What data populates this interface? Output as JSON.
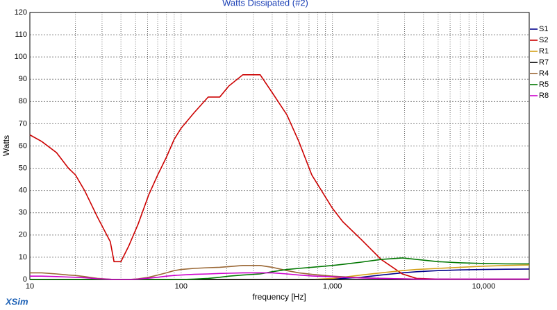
{
  "chart_data": {
    "type": "line",
    "title": "Watts Dissipated (#2)",
    "xlabel": "frequency [Hz]",
    "ylabel": "Watts",
    "watermark": "XSim",
    "xscale": "log",
    "xlim": [
      10,
      20000
    ],
    "ylim": [
      0,
      120
    ],
    "xticks": [
      10,
      100,
      {
        "value": 1000,
        "label": "1,000"
      },
      {
        "value": 10000,
        "label": "10,000"
      }
    ],
    "x_minor_ticks": [
      20,
      30,
      40,
      50,
      60,
      70,
      80,
      90,
      200,
      300,
      400,
      500,
      600,
      700,
      800,
      900,
      2000,
      3000,
      4000,
      5000,
      6000,
      7000,
      8000,
      9000
    ],
    "yticks": [
      0,
      10,
      20,
      30,
      40,
      50,
      60,
      70,
      80,
      90,
      100,
      110,
      120
    ],
    "grid": true,
    "legend": "right",
    "x": [
      10,
      12,
      15,
      18,
      20,
      23,
      28,
      34,
      36,
      40,
      45,
      52,
      61,
      70,
      80,
      90,
      100,
      122,
      151,
      180,
      207,
      256,
      333,
      400,
      500,
      600,
      730,
      1000,
      1170,
      1550,
      2100,
      2900,
      3600,
      5000,
      7000,
      10000,
      14000,
      20000
    ],
    "series": [
      {
        "name": "S1",
        "color": "#00008b",
        "values": [
          0,
          0,
          0,
          0,
          0,
          0,
          0,
          0,
          0,
          0,
          0,
          0,
          0,
          0,
          0,
          0,
          0,
          0,
          0,
          0,
          0,
          0,
          0,
          0,
          0,
          0,
          0,
          0.2,
          0.5,
          1,
          2,
          3,
          3.5,
          4,
          4.3,
          4.5,
          4.6,
          4.7
        ]
      },
      {
        "name": "S2",
        "color": "#cc0000",
        "values": [
          65,
          62,
          57,
          50,
          47,
          40,
          28,
          17,
          8,
          8,
          15,
          25,
          38,
          47,
          55,
          63,
          68,
          75,
          82,
          82,
          87,
          92,
          92,
          84,
          74,
          62,
          47,
          32,
          26,
          18,
          9,
          2.5,
          0.5,
          0.2,
          0.1,
          0.1,
          0.1,
          0.1
        ]
      },
      {
        "name": "R1",
        "color": "#d4a017",
        "values": [
          0,
          0,
          0,
          0,
          0,
          0,
          0,
          0,
          0,
          0,
          0,
          0,
          0,
          0,
          0,
          0,
          0,
          0,
          0,
          0,
          0,
          0,
          0,
          0,
          0,
          0,
          0,
          0.5,
          1,
          2,
          3,
          4,
          4.5,
          5,
          5.5,
          6,
          6.3,
          6.5
        ]
      },
      {
        "name": "R7",
        "color": "#000000",
        "values": [
          0,
          0,
          0,
          0,
          0,
          0,
          0,
          0,
          0,
          0,
          0,
          0,
          0,
          0,
          0,
          0,
          0,
          0,
          0,
          0,
          0,
          0,
          0,
          0,
          0,
          0,
          0,
          0,
          0,
          0,
          0,
          0,
          0,
          0,
          0,
          0,
          0,
          0
        ]
      },
      {
        "name": "R4",
        "color": "#996633",
        "values": [
          3,
          3,
          2.5,
          2,
          1.8,
          1.3,
          0.5,
          0.1,
          0,
          0,
          0,
          0.3,
          1,
          2,
          3,
          4,
          4.5,
          5,
          5.3,
          5.5,
          5.8,
          6.3,
          6.3,
          5.5,
          4,
          3,
          2.3,
          1.5,
          1.2,
          0.8,
          0.5,
          0.3,
          0.2,
          0.2,
          0.2,
          0.2,
          0.2,
          0.2
        ]
      },
      {
        "name": "R5",
        "color": "#007700",
        "values": [
          0,
          0,
          0,
          0,
          0,
          0,
          0,
          0,
          0,
          0,
          0,
          0,
          0,
          0,
          0,
          0,
          0,
          0.2,
          0.5,
          1,
          1.5,
          2,
          2.5,
          3.5,
          4.5,
          5,
          5.5,
          6.3,
          6.8,
          7.8,
          9,
          9.7,
          9,
          8,
          7.5,
          7.2,
          7,
          7
        ]
      },
      {
        "name": "R8",
        "color": "#cc00cc",
        "values": [
          1.5,
          1.5,
          1.3,
          1.1,
          1,
          0.8,
          0.3,
          0.1,
          0,
          0,
          0,
          0.2,
          0.6,
          1,
          1.5,
          1.8,
          2,
          2.3,
          2.5,
          2.7,
          2.8,
          3,
          3,
          3,
          2.5,
          2,
          1.6,
          1.2,
          1,
          0.7,
          0.5,
          0.3,
          0.2,
          0.2,
          0.2,
          0.2,
          0.2,
          0.2
        ]
      }
    ]
  }
}
